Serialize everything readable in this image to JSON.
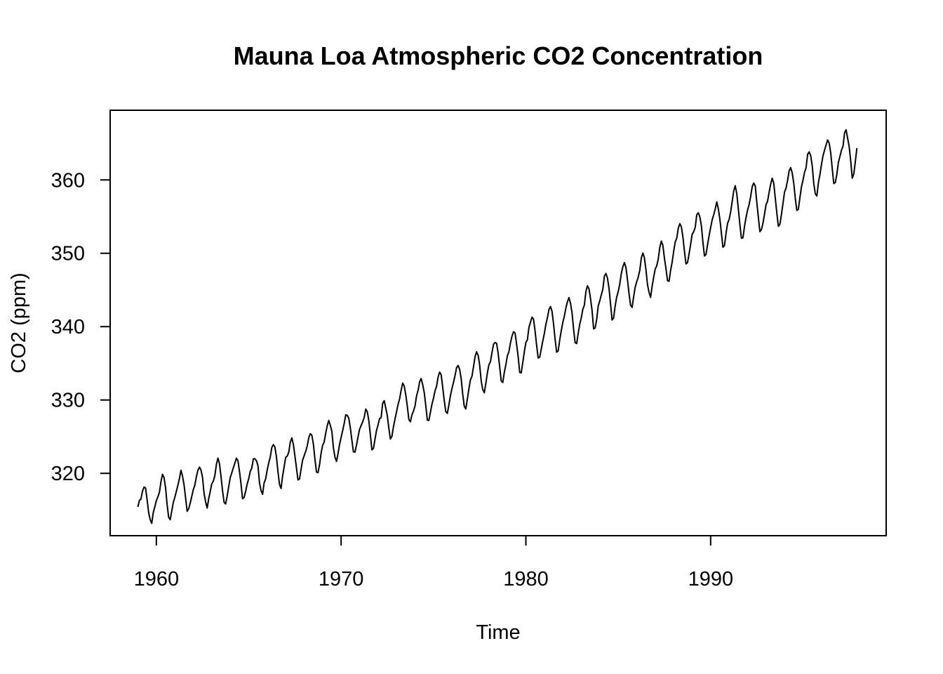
{
  "chart_data": {
    "type": "line",
    "title": "Mauna Loa Atmospheric CO2 Concentration",
    "xlabel": "Time",
    "ylabel": "CO2 (ppm)",
    "xlim": [
      1957.5,
      1999.5
    ],
    "ylim": [
      311.5,
      369.5
    ],
    "x_ticks": [
      1960,
      1970,
      1980,
      1990
    ],
    "x_tick_labels": [
      "1960",
      "1970",
      "1980",
      "1990"
    ],
    "y_ticks": [
      320,
      330,
      340,
      350,
      360
    ],
    "y_tick_labels": [
      "320",
      "330",
      "340",
      "350",
      "360"
    ],
    "grid": false,
    "legend": "none",
    "line_color": "#000000",
    "series": [
      {
        "x_start": 1959.0,
        "x_step": 0.08333,
        "values": [
          315.42,
          316.31,
          316.5,
          317.56,
          318.13,
          318.0,
          316.39,
          314.65,
          313.68,
          313.18,
          314.66,
          315.43,
          316.27,
          316.81,
          317.42,
          318.87,
          319.87,
          319.43,
          318.01,
          315.74,
          314.0,
          313.68,
          314.84,
          316.03,
          316.73,
          317.54,
          318.38,
          319.31,
          320.42,
          319.61,
          318.42,
          316.63,
          314.83,
          315.16,
          315.94,
          316.85,
          317.78,
          318.4,
          319.53,
          320.42,
          320.85,
          320.45,
          319.45,
          317.25,
          316.11,
          315.27,
          316.53,
          317.53,
          318.58,
          318.92,
          319.7,
          321.22,
          322.08,
          321.31,
          319.58,
          317.61,
          316.05,
          315.83,
          316.91,
          318.2,
          319.41,
          320.07,
          320.74,
          321.4,
          322.06,
          321.73,
          320.27,
          318.54,
          316.54,
          316.71,
          317.53,
          318.55,
          319.27,
          320.28,
          320.73,
          321.97,
          322.0,
          321.71,
          321.05,
          318.71,
          317.66,
          317.14,
          318.7,
          319.25,
          320.46,
          321.43,
          322.23,
          323.54,
          323.91,
          323.59,
          322.24,
          320.2,
          318.48,
          317.94,
          319.63,
          320.87,
          322.17,
          322.34,
          322.88,
          324.25,
          324.83,
          323.93,
          322.38,
          320.76,
          319.1,
          319.24,
          320.56,
          321.8,
          322.4,
          322.99,
          323.73,
          324.86,
          325.4,
          325.2,
          323.98,
          321.95,
          320.18,
          320.09,
          321.16,
          322.74,
          323.83,
          324.26,
          325.47,
          326.5,
          327.21,
          326.54,
          325.72,
          323.5,
          322.22,
          321.62,
          322.69,
          323.95,
          324.89,
          325.82,
          326.77,
          327.97,
          327.91,
          327.5,
          326.18,
          324.53,
          322.93,
          322.9,
          323.85,
          324.96,
          326.01,
          326.51,
          327.01,
          327.62,
          328.76,
          328.4,
          327.2,
          325.27,
          323.2,
          323.4,
          324.63,
          325.85,
          326.6,
          327.47,
          327.58,
          329.56,
          329.9,
          328.92,
          327.88,
          326.16,
          324.68,
          325.04,
          326.34,
          327.39,
          328.37,
          329.4,
          330.14,
          331.33,
          332.31,
          331.9,
          330.7,
          329.15,
          327.35,
          327.02,
          327.99,
          328.48,
          329.18,
          330.55,
          331.32,
          332.48,
          332.92,
          332.08,
          331.01,
          329.23,
          327.27,
          327.21,
          328.29,
          329.41,
          330.23,
          331.25,
          331.87,
          333.14,
          333.8,
          333.43,
          331.73,
          329.9,
          328.4,
          328.17,
          329.32,
          330.59,
          331.58,
          332.39,
          333.33,
          334.41,
          334.71,
          334.17,
          332.89,
          330.77,
          329.14,
          328.78,
          330.14,
          331.52,
          332.75,
          333.24,
          334.53,
          335.9,
          336.57,
          336.1,
          334.76,
          332.59,
          331.42,
          330.98,
          332.24,
          333.68,
          334.8,
          335.22,
          336.47,
          337.59,
          337.84,
          337.72,
          336.37,
          334.51,
          332.6,
          332.38,
          333.75,
          334.78,
          336.05,
          336.59,
          337.79,
          338.71,
          339.3,
          339.12,
          337.56,
          335.92,
          333.75,
          333.7,
          335.12,
          336.56,
          337.84,
          338.19,
          339.91,
          340.6,
          341.29,
          341.0,
          339.39,
          337.43,
          335.72,
          335.84,
          336.93,
          338.04,
          339.06,
          340.3,
          341.21,
          342.33,
          342.74,
          342.08,
          340.32,
          338.26,
          336.52,
          336.68,
          338.19,
          339.44,
          340.57,
          341.44,
          342.53,
          343.39,
          343.96,
          343.18,
          341.88,
          339.65,
          337.81,
          337.69,
          339.09,
          340.32,
          341.2,
          342.35,
          342.93,
          344.77,
          345.58,
          345.14,
          343.81,
          342.21,
          339.69,
          339.82,
          340.98,
          342.82,
          343.52,
          344.33,
          345.11,
          346.88,
          347.25,
          346.62,
          345.22,
          343.11,
          340.9,
          341.18,
          342.8,
          344.04,
          344.79,
          345.82,
          347.25,
          348.17,
          348.74,
          348.07,
          346.38,
          344.51,
          342.92,
          342.62,
          344.06,
          345.38,
          346.11,
          346.78,
          347.68,
          349.37,
          350.03,
          349.37,
          347.76,
          345.73,
          344.68,
          343.99,
          345.48,
          346.72,
          347.84,
          348.29,
          349.23,
          350.8,
          351.66,
          351.07,
          349.33,
          347.92,
          346.27,
          346.18,
          347.64,
          348.78,
          350.25,
          351.54,
          352.05,
          353.41,
          354.04,
          353.62,
          352.22,
          350.27,
          348.55,
          348.72,
          349.91,
          351.18,
          352.6,
          352.92,
          353.53,
          355.26,
          355.52,
          354.97,
          353.75,
          351.52,
          349.64,
          349.83,
          351.14,
          352.37,
          353.5,
          354.55,
          355.23,
          356.04,
          357.0,
          356.07,
          354.67,
          352.76,
          350.82,
          351.04,
          352.69,
          354.07,
          354.59,
          355.63,
          357.03,
          358.48,
          359.22,
          358.12,
          356.06,
          353.92,
          352.05,
          352.11,
          353.64,
          354.89,
          355.88,
          356.63,
          357.72,
          359.07,
          359.58,
          359.17,
          356.94,
          354.92,
          352.94,
          353.23,
          354.09,
          355.33,
          356.63,
          357.1,
          358.32,
          359.41,
          360.23,
          359.55,
          357.53,
          355.48,
          353.67,
          353.95,
          355.3,
          356.78,
          358.34,
          358.89,
          359.95,
          361.25,
          361.67,
          360.94,
          359.55,
          357.49,
          355.84,
          356.0,
          357.59,
          359.05,
          359.98,
          361.03,
          361.66,
          363.48,
          363.82,
          363.3,
          361.94,
          359.5,
          358.11,
          357.8,
          359.61,
          360.74,
          362.09,
          363.29,
          364.06,
          364.76,
          365.45,
          365.01,
          363.7,
          361.54,
          359.51,
          359.65,
          360.8,
          362.38,
          363.23,
          364.06,
          364.61,
          366.4,
          366.84,
          365.68,
          364.52,
          362.57,
          360.24,
          360.83,
          362.49,
          364.34
        ]
      }
    ]
  }
}
